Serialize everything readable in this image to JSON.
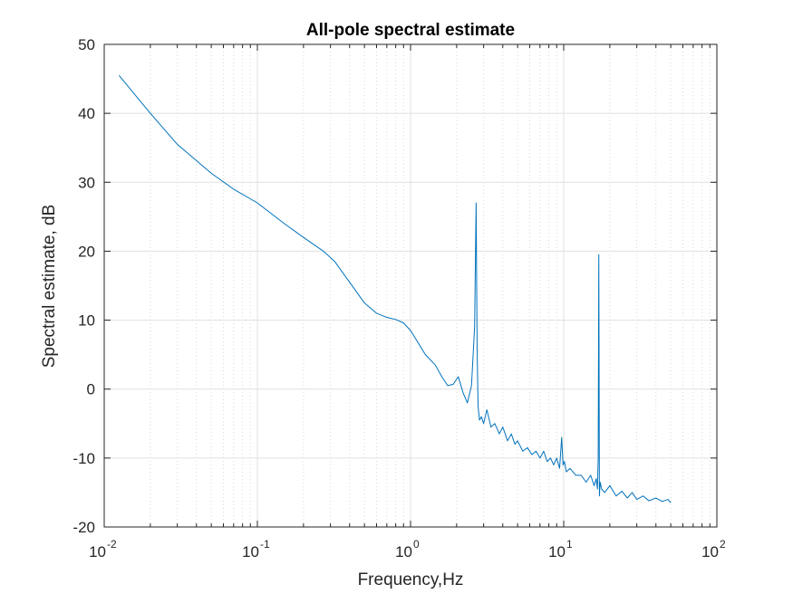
{
  "chart_data": {
    "type": "line",
    "title": "All-pole spectral estimate",
    "xlabel": "Frequency,Hz",
    "ylabel": "Spectral estimate, dB",
    "xscale": "log",
    "xlim": [
      0.01,
      100
    ],
    "ylim": [
      -20,
      50
    ],
    "grid": true,
    "x_ticks": [
      {
        "base": "10",
        "exp": "-2",
        "value": 0.01
      },
      {
        "base": "10",
        "exp": "-1",
        "value": 0.1
      },
      {
        "base": "10",
        "exp": "0",
        "value": 1
      },
      {
        "base": "10",
        "exp": "1",
        "value": 10
      },
      {
        "base": "10",
        "exp": "2",
        "value": 100
      }
    ],
    "y_ticks": [
      "-20",
      "-10",
      "0",
      "10",
      "20",
      "30",
      "40",
      "50"
    ],
    "series": [
      {
        "color": "#0072BD",
        "x": [
          0.0125,
          0.02,
          0.03,
          0.05,
          0.07,
          0.1,
          0.15,
          0.2,
          0.27,
          0.32,
          0.4,
          0.5,
          0.6,
          0.7,
          0.8,
          0.9,
          1.0,
          1.1,
          1.25,
          1.45,
          1.6,
          1.75,
          1.9,
          2.05,
          2.2,
          2.35,
          2.5,
          2.62,
          2.68,
          2.72,
          2.76,
          2.82,
          2.9,
          3.0,
          3.15,
          3.35,
          3.55,
          3.8,
          4.0,
          4.3,
          4.55,
          4.8,
          5.0,
          5.4,
          5.8,
          6.2,
          6.6,
          7.0,
          7.4,
          7.8,
          8.2,
          8.6,
          9.0,
          9.4,
          9.7,
          9.9,
          10.1,
          10.4,
          11.0,
          12.0,
          13.0,
          14.0,
          15.0,
          15.8,
          16.3,
          16.6,
          16.8,
          16.95,
          17.1,
          17.3,
          17.7,
          18.5,
          20.0,
          22.0,
          24.0,
          26.0,
          28.0,
          30.0,
          33.0,
          36.0,
          40.0,
          44.0,
          48.0,
          50.0
        ],
        "y": [
          45.5,
          40.0,
          35.5,
          31.3,
          29.0,
          27.0,
          24.0,
          22.0,
          20.0,
          18.5,
          15.5,
          12.5,
          11.0,
          10.4,
          10.1,
          9.6,
          8.5,
          7.0,
          5.0,
          3.5,
          1.8,
          0.5,
          0.7,
          1.8,
          -0.5,
          -2.0,
          0.5,
          9.0,
          27.0,
          6.0,
          -2.5,
          -4.5,
          -4.0,
          -5.0,
          -3.0,
          -5.5,
          -5.0,
          -6.5,
          -5.5,
          -7.5,
          -6.5,
          -8.0,
          -7.5,
          -9.0,
          -8.5,
          -9.5,
          -9.0,
          -10.0,
          -9.0,
          -10.5,
          -10.0,
          -11.0,
          -10.0,
          -11.5,
          -7.0,
          -11.0,
          -10.5,
          -12.0,
          -11.5,
          -12.5,
          -12.5,
          -13.5,
          -12.5,
          -14.0,
          -13.0,
          -14.5,
          -10.0,
          19.5,
          -15.5,
          -13.5,
          -14.5,
          -15.0,
          -14.0,
          -15.5,
          -14.8,
          -15.8,
          -15.0,
          -16.0,
          -15.5,
          -16.2,
          -15.8,
          -16.3,
          -16.0,
          -16.5
        ]
      }
    ]
  }
}
